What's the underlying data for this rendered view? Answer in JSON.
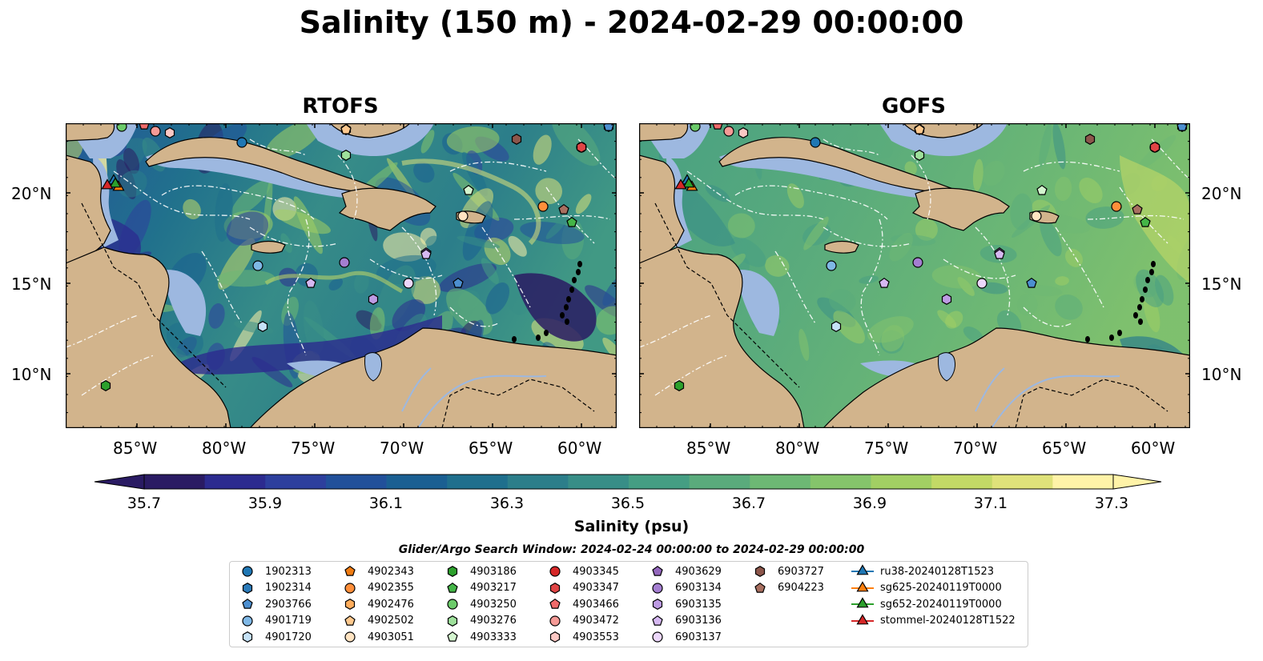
{
  "title": "Salinity (150 m) - 2024-02-29 00:00:00",
  "panels": [
    {
      "title": "RTOFS",
      "variant": "rtofs"
    },
    {
      "title": "GOFS",
      "variant": "gofs"
    }
  ],
  "lon_ticks": [
    "85°W",
    "80°W",
    "75°W",
    "70°W",
    "65°W",
    "60°W"
  ],
  "lat_ticks": [
    "20°N",
    "15°N",
    "10°N"
  ],
  "colorbar": {
    "label": "Salinity (psu)",
    "ticks": [
      "35.7",
      "35.9",
      "36.1",
      "36.3",
      "36.5",
      "36.7",
      "36.9",
      "37.1",
      "37.3"
    ],
    "colors": [
      "#2a1b63",
      "#2c2b8f",
      "#2d3f9d",
      "#21509a",
      "#1a5f92",
      "#1f6f8d",
      "#2c7e8a",
      "#388e87",
      "#459e83",
      "#5aab7c",
      "#6db874",
      "#85c46b",
      "#a2cf63",
      "#c3d966",
      "#dfe27a",
      "#fff3a8"
    ],
    "under_color": "#2a1b63",
    "over_color": "#fff3a8"
  },
  "search_window": "Glider/Argo Search Window: 2024-02-24 00:00:00 to 2024-02-29 00:00:00",
  "legend": [
    {
      "label": "1902313",
      "marker": "circle",
      "color": "#1f77b4"
    },
    {
      "label": "1902314",
      "marker": "hexagon",
      "color": "#2b7bba"
    },
    {
      "label": "2903766",
      "marker": "pentagon",
      "color": "#4c8fd0"
    },
    {
      "label": "4901719",
      "marker": "circle",
      "color": "#7fb8e6"
    },
    {
      "label": "4901720",
      "marker": "hexagon",
      "color": "#c6e2f7"
    },
    {
      "label": "4902343",
      "marker": "pentagon",
      "color": "#f07c12"
    },
    {
      "label": "4902355",
      "marker": "circle",
      "color": "#ff8f3a"
    },
    {
      "label": "4902476",
      "marker": "hexagon",
      "color": "#ffad5c"
    },
    {
      "label": "4902502",
      "marker": "pentagon",
      "color": "#ffc98e"
    },
    {
      "label": "4903051",
      "marker": "circle",
      "color": "#ffe4c2"
    },
    {
      "label": "4903186",
      "marker": "hexagon",
      "color": "#2ca02c"
    },
    {
      "label": "4903217",
      "marker": "pentagon",
      "color": "#44b547"
    },
    {
      "label": "4903250",
      "marker": "circle",
      "color": "#6ccb6a"
    },
    {
      "label": "4903276",
      "marker": "hexagon",
      "color": "#9ee09b"
    },
    {
      "label": "4903333",
      "marker": "pentagon",
      "color": "#d4f5cf"
    },
    {
      "label": "4903345",
      "marker": "circle",
      "color": "#d62728"
    },
    {
      "label": "4903347",
      "marker": "hexagon",
      "color": "#e04545"
    },
    {
      "label": "4903466",
      "marker": "pentagon",
      "color": "#ef6b6b"
    },
    {
      "label": "4903472",
      "marker": "circle",
      "color": "#f59a96"
    },
    {
      "label": "4903553",
      "marker": "hexagon",
      "color": "#fcc8c4"
    },
    {
      "label": "4903629",
      "marker": "pentagon",
      "color": "#9467bd"
    },
    {
      "label": "6903134",
      "marker": "circle",
      "color": "#a47ed1"
    },
    {
      "label": "6903135",
      "marker": "hexagon",
      "color": "#bd9be3"
    },
    {
      "label": "6903136",
      "marker": "pentagon",
      "color": "#d6b8f2"
    },
    {
      "label": "6903137",
      "marker": "circle",
      "color": "#ecd7fb"
    },
    {
      "label": "6903727",
      "marker": "hexagon",
      "color": "#8c564b"
    },
    {
      "label": "6904223",
      "marker": "pentagon",
      "color": "#a86f60"
    },
    {
      "label": "ru38-20240128T1523",
      "marker": "triangle",
      "color": "#1f77b4"
    },
    {
      "label": "sg625-20240119T0000",
      "marker": "triangle",
      "color": "#ff7f0e"
    },
    {
      "label": "sg652-20240119T0000",
      "marker": "triangle",
      "color": "#2ca02c"
    },
    {
      "label": "stommel-20240128T1522",
      "marker": "triangle",
      "color": "#d62728"
    }
  ],
  "map_colors": {
    "land": "#d2b48c",
    "shallow": "#9db8e0",
    "deep_pacific": "#2a1b63",
    "white": "#ffffff"
  }
}
